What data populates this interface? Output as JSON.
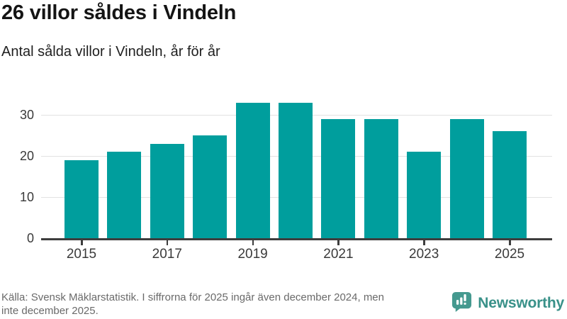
{
  "header": {
    "title": "26 villor såldes i Vindeln",
    "subtitle": "Antal sålda villor i Vindeln, år för år"
  },
  "chart_data": {
    "type": "bar",
    "title": "26 villor såldes i Vindeln",
    "subtitle": "Antal sålda villor i Vindeln, år för år",
    "categories": [
      "2015",
      "2016",
      "2017",
      "2018",
      "2019",
      "2020",
      "2021",
      "2022",
      "2023",
      "2024",
      "2025"
    ],
    "values": [
      19,
      21,
      23,
      25,
      33,
      33,
      29,
      29,
      21,
      29,
      26
    ],
    "xlabel": "",
    "ylabel": "",
    "ylim": [
      0,
      35
    ],
    "yticks": [
      0,
      10,
      20,
      30
    ],
    "xtick_indices": [
      0,
      2,
      4,
      6,
      8,
      10
    ],
    "xtick_labels": [
      "2015",
      "2017",
      "2019",
      "2021",
      "2023",
      "2025"
    ],
    "bar_color": "#009e9d",
    "grid": true,
    "legend": false
  },
  "footer": {
    "source_lines": [
      "Källa: Svensk Mäklarstatistik. I siffrorna för 2025 ingår även december 2024, men",
      "inte december 2025."
    ],
    "brand": "Newsworthy",
    "brand_color": "#399189"
  }
}
